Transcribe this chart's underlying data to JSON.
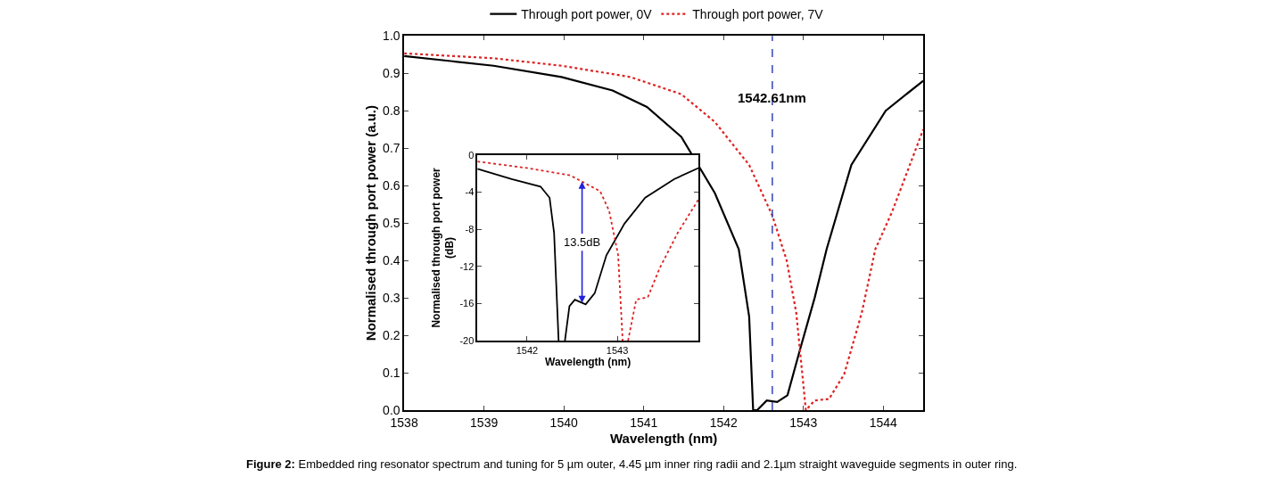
{
  "chart_data": [
    {
      "type": "line",
      "xlabel": "Wavelength (nm)",
      "ylabel": "Normalised through port power (a.u.)",
      "xlim": [
        1538,
        1544.5
      ],
      "ylim": [
        0,
        1.0
      ],
      "xticks": [
        1538,
        1539,
        1540,
        1541,
        1542,
        1543,
        1544
      ],
      "yticks": [
        {
          "value": 0,
          "label": "0.0"
        },
        0.1,
        0.2,
        0.3,
        0.4,
        0.5,
        0.6,
        0.7,
        0.8,
        0.9,
        {
          "value": 1,
          "label": "1.0"
        }
      ],
      "legend": "top",
      "marker": "none",
      "series": [
        {
          "name": "Through port power, 0V",
          "color": "#000000",
          "line_style": "solid",
          "x": [
            1538,
            1539.12,
            1539.97,
            1540.61,
            1541.04,
            1541.47,
            1541.89,
            1542.19,
            1542.32,
            1542.37,
            1542.42,
            1542.54,
            1542.67,
            1542.8,
            1542.95,
            1543.14,
            1543.29,
            1543.6,
            1544.03,
            1544.5
          ],
          "values": [
            0.946,
            0.92,
            0.89,
            0.854,
            0.81,
            0.73,
            0.58,
            0.43,
            0.25,
            0.0,
            0.0,
            0.026,
            0.022,
            0.04,
            0.157,
            0.3,
            0.43,
            0.655,
            0.8,
            0.88
          ]
        },
        {
          "name": "Through port power, 7V",
          "color": "#dd2222",
          "line_style": "dotted",
          "x": [
            1538,
            1539.12,
            1539.97,
            1540.83,
            1541.47,
            1541.89,
            1542.32,
            1542.61,
            1542.79,
            1542.91,
            1543.03,
            1543.14,
            1543.32,
            1543.51,
            1543.73,
            1543.9,
            1544.11,
            1544.5
          ],
          "values": [
            0.953,
            0.94,
            0.92,
            0.89,
            0.844,
            0.77,
            0.655,
            0.52,
            0.4,
            0.26,
            0.0,
            0.026,
            0.03,
            0.096,
            0.26,
            0.43,
            0.53,
            0.75
          ]
        }
      ],
      "ref_lines": [
        {
          "axis": "x",
          "value": 1542.61,
          "label": "1542.61nm",
          "color": "#3344bb",
          "line_style": "dashed"
        }
      ],
      "annotations": [
        "Figure 2: Embedded ring resonator spectrum and tuning for 5 µm outer, 4.45 µm inner ring radii and 2.1µm straight waveguide segments in outer ring."
      ]
    },
    {
      "type": "line",
      "xlabel": "Wavelength (nm)",
      "ylabel": "Normalised through port power (dB)",
      "xlim": [
        1541.45,
        1543.9
      ],
      "ylim": [
        -20,
        0
      ],
      "xticks": [
        1542,
        1543
      ],
      "yticks": [
        0,
        -4,
        -8,
        -12,
        -16,
        -20
      ],
      "legend": false,
      "marker": "none",
      "series": [
        {
          "color": "#000000",
          "line_style": "solid",
          "x": [
            1541.45,
            1541.83,
            1542.15,
            1542.25,
            1542.3,
            1542.35,
            1542.38,
            1542.42,
            1542.47,
            1542.53,
            1542.65,
            1542.75,
            1542.88,
            1543.08,
            1543.31,
            1543.63,
            1543.9
          ],
          "values": [
            -1.5,
            -2.6,
            -3.4,
            -4.6,
            -8.4,
            -20,
            null,
            -20,
            -16.3,
            -15.6,
            -16.1,
            -14.9,
            -10.8,
            -7.4,
            -4.6,
            -2.6,
            -1.4
          ]
        },
        {
          "color": "#dd2222",
          "line_style": "dotted",
          "x": [
            1541.45,
            1542.0,
            1542.48,
            1542.81,
            1542.91,
            1543.01,
            1543.06,
            1543.09,
            1543.12,
            1543.21,
            1543.34,
            1543.47,
            1543.67,
            1543.9
          ],
          "values": [
            -0.7,
            -1.4,
            -2.2,
            -3.9,
            -6.0,
            -10.8,
            -20,
            null,
            -20,
            -15.6,
            -15.3,
            -12.2,
            -8.4,
            -4.8
          ]
        }
      ],
      "annotations": [
        {
          "text": "13.5dB",
          "x": 1542.61,
          "y": -9.4
        }
      ]
    }
  ]
}
